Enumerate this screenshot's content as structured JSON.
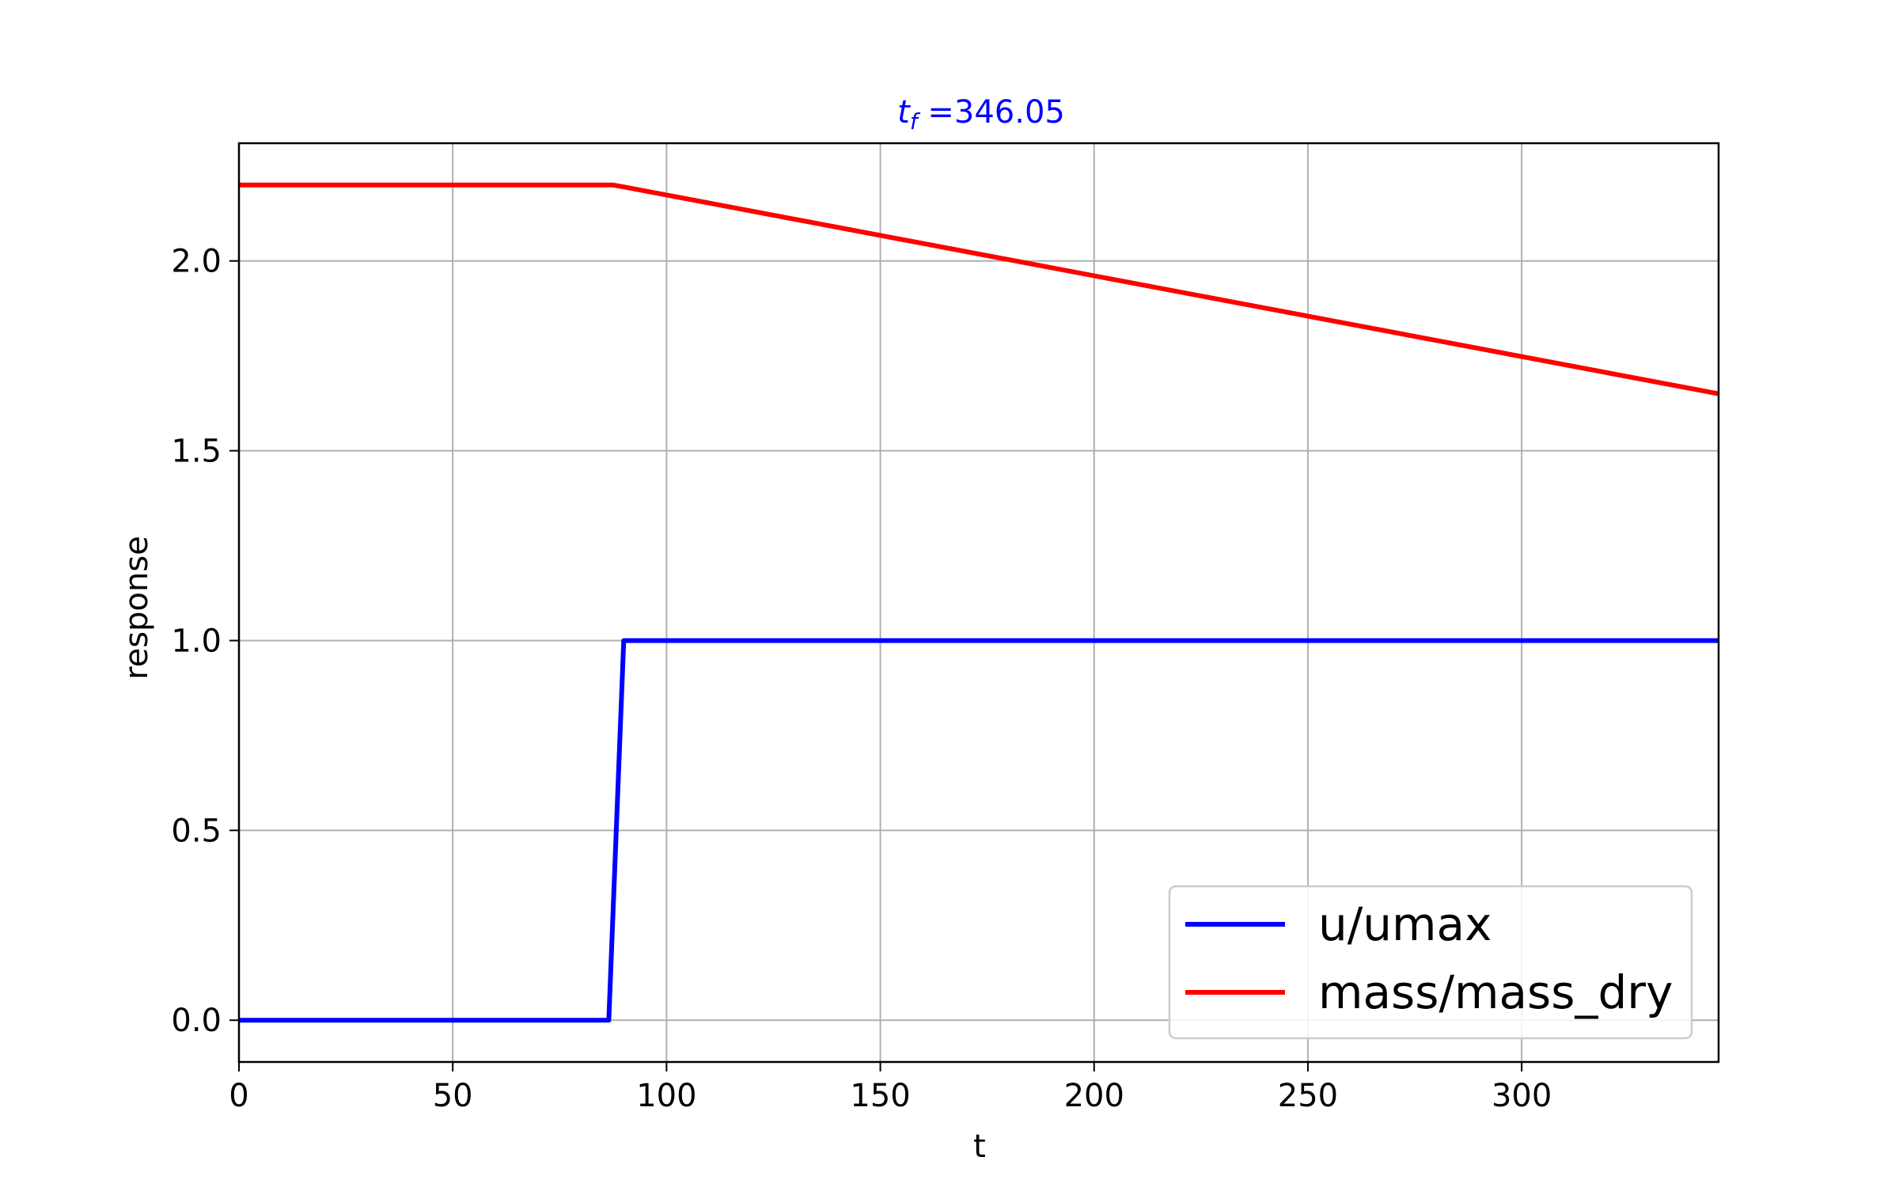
{
  "chart_data": {
    "type": "line",
    "title": "t_f =346.05",
    "title_parts": {
      "symbol": "t",
      "subscript": "f",
      "rest": " =346.05"
    },
    "title_color": "#0000ff",
    "xlabel": "t",
    "ylabel": "response",
    "xlim": [
      0,
      346.05
    ],
    "ylim": [
      -0.11,
      2.31
    ],
    "xticks": [
      0,
      50,
      100,
      150,
      200,
      250,
      300
    ],
    "xtick_labels": [
      "0",
      "50",
      "100",
      "150",
      "200",
      "250",
      "300"
    ],
    "yticks": [
      0.0,
      0.5,
      1.0,
      1.5,
      2.0
    ],
    "ytick_labels": [
      "0.0",
      "0.5",
      "1.0",
      "1.5",
      "2.0"
    ],
    "grid": true,
    "legend_position": "lower-right",
    "series": [
      {
        "name": "u/umax",
        "color": "#0000ff",
        "x": [
          0,
          86.5,
          90,
          346.05
        ],
        "y": [
          0.0,
          0.0,
          1.0,
          1.0
        ]
      },
      {
        "name": "mass/mass_dry",
        "color": "#ff0000",
        "x": [
          0,
          87.5,
          90,
          346.05
        ],
        "y": [
          2.2,
          2.2,
          2.195,
          1.65
        ]
      }
    ]
  }
}
